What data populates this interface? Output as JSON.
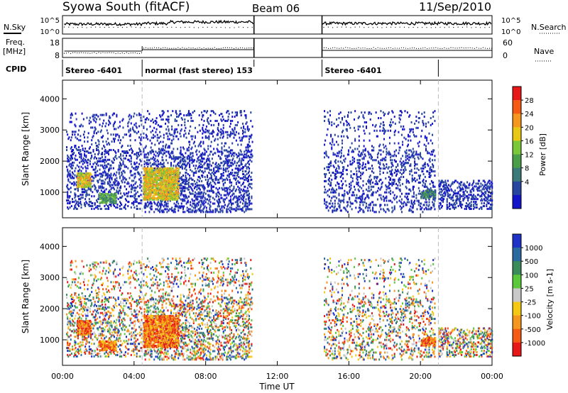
{
  "header": {
    "title": "Syowa South (fitACF)",
    "beam": "Beam 06",
    "date": "11/Sep/2010"
  },
  "panels": {
    "noise": {
      "left_label": "N.Sky",
      "right_label": "N.Search",
      "left_ticks": [
        "10^5",
        "10^0"
      ],
      "right_ticks": [
        "10^5",
        "10^0"
      ]
    },
    "freq": {
      "left_label": "Freq.",
      "left_unit": "[MHz]",
      "right_label": "Nave",
      "left_ticks": [
        "18",
        "8"
      ],
      "right_ticks": [
        "60",
        "0"
      ]
    },
    "cpid": {
      "label": "CPID",
      "segments": [
        {
          "text": "Stereo -6401",
          "start_h": 0,
          "end_h": 4.45
        },
        {
          "text": "normal (fast stereo) 153",
          "start_h": 4.45,
          "end_h": 10.7
        },
        {
          "text": "Stereo -6401",
          "start_h": 14.5,
          "end_h": 21.0
        }
      ]
    },
    "power": {
      "ylabel": "Slant Range [km]",
      "colorbar_label": "Power [dB]",
      "colorbar_ticks": [
        "28",
        "24",
        "20",
        "16",
        "12",
        "8",
        "4"
      ],
      "colorbar_colors": [
        "#e81818",
        "#f55a14",
        "#f5961e",
        "#e8c814",
        "#7ac83a",
        "#4a9e4a",
        "#3c7a7a",
        "#2846a0",
        "#1414c8"
      ]
    },
    "velocity": {
      "ylabel": "Slant Range [km]",
      "colorbar_label": "Velocity [m s-1]",
      "colorbar_ticks": [
        "1000",
        "500",
        "100",
        "25",
        "-25",
        "-100",
        "-500",
        "-1000"
      ],
      "colorbar_colors": [
        "#1e32c8",
        "#2a6aa0",
        "#3a8a5a",
        "#5ac83a",
        "#c8c8c8",
        "#f5c814",
        "#f5961e",
        "#f55a14",
        "#e81818"
      ]
    }
  },
  "chart_data": {
    "type": "heatmap",
    "xlabel": "Time UT",
    "x_ticks": [
      "00:00",
      "04:00",
      "08:00",
      "12:00",
      "16:00",
      "20:00",
      "00:00"
    ],
    "xlim_hours": [
      0,
      24
    ],
    "ylim_km": [
      180,
      4600
    ],
    "y_ticks": [
      1000,
      2000,
      3000,
      4000
    ],
    "data_gap_hours": [
      10.7,
      14.5
    ],
    "dashed_markers_hours": [
      4.45,
      21.0
    ],
    "echo_regions": [
      {
        "t0": 0.2,
        "t1": 4.4,
        "r0": 500,
        "r1": 3600,
        "density": 0.18
      },
      {
        "t0": 4.5,
        "t1": 10.6,
        "r0": 400,
        "r1": 3650,
        "density": 0.22
      },
      {
        "t0": 14.6,
        "t1": 20.8,
        "r0": 400,
        "r1": 3650,
        "density": 0.14
      },
      {
        "t0": 21.0,
        "t1": 24.0,
        "r0": 500,
        "r1": 1400,
        "density": 0.25
      }
    ],
    "strong_features": [
      {
        "t0": 0.8,
        "t1": 1.6,
        "r0": 1200,
        "r1": 1650,
        "power": 16
      },
      {
        "t0": 2.0,
        "t1": 3.0,
        "r0": 700,
        "r1": 1000,
        "power": 12
      },
      {
        "t0": 4.5,
        "t1": 6.5,
        "r0": 800,
        "r1": 1800,
        "power": 18
      },
      {
        "t0": 20.0,
        "t1": 20.8,
        "r0": 850,
        "r1": 1100,
        "power": 8
      }
    ]
  }
}
